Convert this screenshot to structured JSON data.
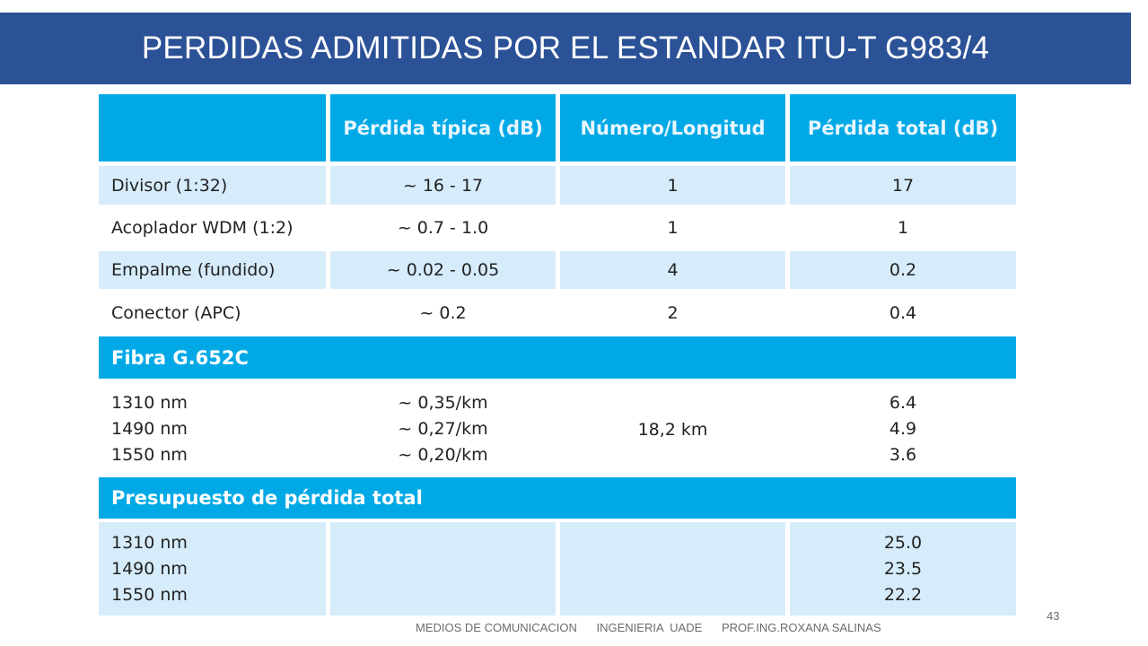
{
  "slide": {
    "title": "PERDIDAS ADMITIDAS POR EL ESTANDAR ITU-T G983/4",
    "page_number": "43",
    "footer": {
      "course": "MEDIOS DE COMUNICACION",
      "institution": "INGENIERIA  UADE",
      "author": "PROF.ING.ROXANA SALINAS"
    }
  },
  "table": {
    "headers": [
      "",
      "Pérdida típica (dB)",
      "Número/Longitud",
      "Pérdida total (dB)"
    ],
    "rows": [
      {
        "component": "Divisor (1:32)",
        "typical": "~ 16 - 17",
        "count": "1",
        "total": "17"
      },
      {
        "component": "Acoplador WDM (1:2)",
        "typical": "~ 0.7 - 1.0",
        "count": "1",
        "total": "1"
      },
      {
        "component": "Empalme (fundido)",
        "typical": "~ 0.02 - 0.05",
        "count": "4",
        "total": "0.2"
      },
      {
        "component": "Conector (APC)",
        "typical": "~ 0.2",
        "count": "2",
        "total": "0.4"
      }
    ],
    "fiber_section": {
      "title": "Fibra G.652C",
      "wavelengths": [
        "1310 nm",
        "1490 nm",
        "1550 nm"
      ],
      "typical": [
        "~ 0,35/km",
        "~ 0,27/km",
        "~ 0,20/km"
      ],
      "length": "18,2 km",
      "totals": [
        "6.4",
        "4.9",
        "3.6"
      ]
    },
    "budget_section": {
      "title": "Presupuesto de pérdida total",
      "wavelengths": [
        "1310 nm",
        "1490 nm",
        "1550 nm"
      ],
      "totals": [
        "25.0",
        "23.5",
        "22.2"
      ]
    }
  },
  "colors": {
    "title_bar": "#2b5196",
    "header_blue": "#00a9e6",
    "row_shade": "#d6ecfb"
  }
}
